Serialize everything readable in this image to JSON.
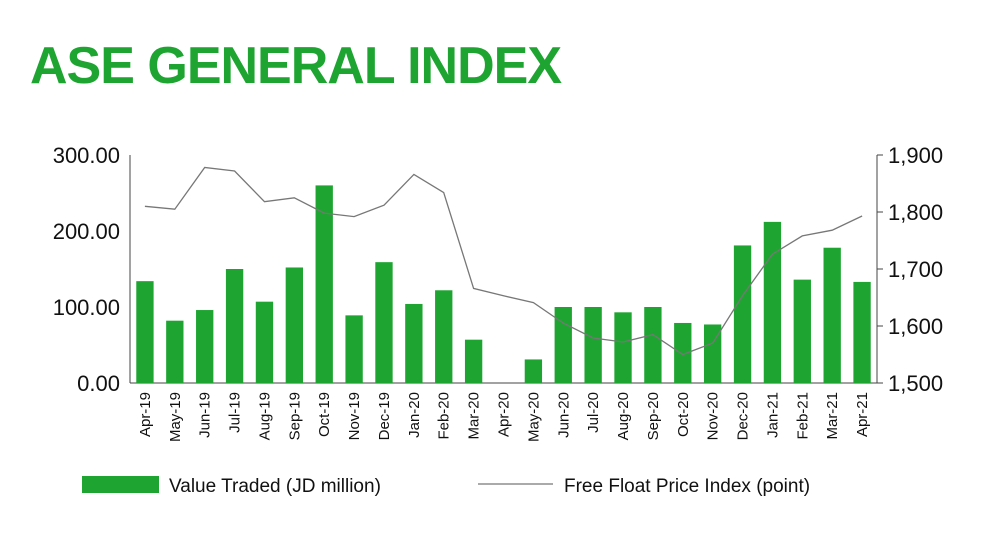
{
  "title": "ASE GENERAL INDEX",
  "colors": {
    "title": "#1ea531",
    "bars": "#1ea531",
    "line": "#777777"
  },
  "chart_data": {
    "type": "bar",
    "categories": [
      "Apr-19",
      "May-19",
      "Jun-19",
      "Jul-19",
      "Aug-19",
      "Sep-19",
      "Oct-19",
      "Nov-19",
      "Dec-19",
      "Jan-20",
      "Feb-20",
      "Mar-20",
      "Apr-20",
      "May-20",
      "Jun-20",
      "Jul-20",
      "Aug-20",
      "Sep-20",
      "Oct-20",
      "Nov-20",
      "Dec-20",
      "Jan-21",
      "Feb-21",
      "Mar-21",
      "Apr-21"
    ],
    "series": [
      {
        "name": "Value Traded (JD million)",
        "type": "bar",
        "axis": "left",
        "values": [
          134,
          82,
          96,
          150,
          107,
          152,
          260,
          89,
          159,
          104,
          122,
          57,
          0,
          31,
          100,
          100,
          93,
          100,
          79,
          77,
          181,
          212,
          136,
          178,
          133
        ]
      },
      {
        "name": "Free Float Price Index (point)",
        "type": "line",
        "axis": "right",
        "values": [
          1810,
          1805,
          1878,
          1872,
          1818,
          1825,
          1798,
          1792,
          1812,
          1866,
          1834,
          1666,
          1653,
          1641,
          1605,
          1579,
          1572,
          1585,
          1550,
          1570,
          1653,
          1726,
          1758,
          1768,
          1793
        ]
      }
    ],
    "left_axis": {
      "ylim": [
        0,
        300
      ],
      "ticks": [
        "0.00",
        "100.00",
        "200.00",
        "300.00"
      ]
    },
    "right_axis": {
      "ylim": [
        1500,
        1900
      ],
      "ticks": [
        "1,500",
        "1,600",
        "1,700",
        "1,800",
        "1,900"
      ]
    },
    "legend": {
      "placement": "bottom"
    },
    "grid": false
  }
}
